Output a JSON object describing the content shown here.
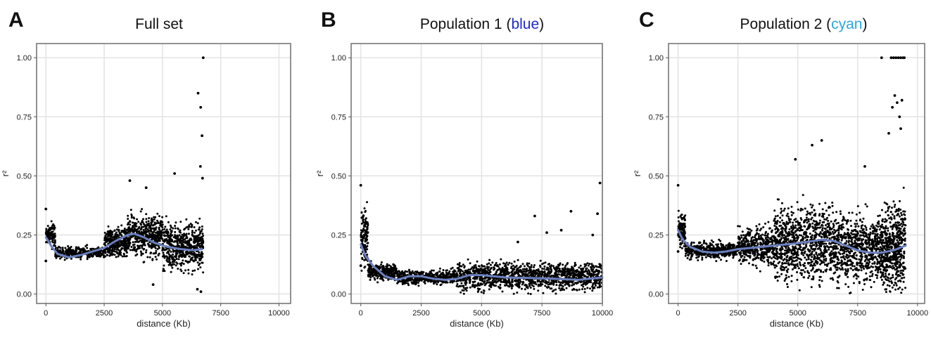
{
  "panels": [
    {
      "letter": "A",
      "title": "Full set",
      "title_parts": [
        {
          "text": "Full set",
          "color": "#111111"
        }
      ]
    },
    {
      "letter": "B",
      "title": "Population 1 (blue)",
      "title_parts": [
        {
          "text": "Population 1 (",
          "color": "#111111"
        },
        {
          "text": "blue",
          "color": "#1f2bcc"
        },
        {
          "text": ")",
          "color": "#111111"
        }
      ]
    },
    {
      "letter": "C",
      "title": "Population 2 (cyan)",
      "title_parts": [
        {
          "text": "Population 2 (",
          "color": "#111111"
        },
        {
          "text": "cyan",
          "color": "#29a9e0"
        },
        {
          "text": ")",
          "color": "#111111"
        }
      ]
    }
  ],
  "colors": {
    "points": "#000000",
    "smooth_line": "#6b7fbf",
    "grid": "#e3e3e3",
    "background": "#ffffff",
    "blue_word": "#1f2bcc",
    "cyan_word": "#29a9e0"
  },
  "chart_data": [
    {
      "type": "scatter",
      "title": "Full set",
      "xlabel": "distance (Kb)",
      "ylabel": "r²",
      "xlim": [
        -400,
        10500
      ],
      "ylim": [
        -0.04,
        1.06
      ],
      "x_ticks": [
        0,
        2500,
        5000,
        7500,
        10000
      ],
      "x_tick_labels": [
        "0",
        "2500",
        "5000",
        "7500",
        "10000"
      ],
      "y_ticks": [
        0,
        0.25,
        0.5,
        0.75,
        1.0
      ],
      "y_tick_labels": [
        "0.00",
        "0.25",
        "0.50",
        "0.75",
        "1.00"
      ],
      "grid": true,
      "legend": "none",
      "smooth_line": {
        "x": [
          0,
          250,
          500,
          1000,
          1500,
          2000,
          2500,
          3000,
          3500,
          3800,
          4200,
          4700,
          5200,
          5800,
          6300,
          6700
        ],
        "y": [
          0.24,
          0.2,
          0.17,
          0.155,
          0.165,
          0.18,
          0.195,
          0.225,
          0.25,
          0.255,
          0.24,
          0.215,
          0.2,
          0.19,
          0.185,
          0.19
        ]
      },
      "scatter_points": [
        {
          "x": 6750,
          "y": 1.0
        },
        {
          "x": 6530,
          "y": 0.85
        },
        {
          "x": 6640,
          "y": 0.79
        },
        {
          "x": 6700,
          "y": 0.67
        },
        {
          "x": 5520,
          "y": 0.51
        },
        {
          "x": 6720,
          "y": 0.49
        },
        {
          "x": 6630,
          "y": 0.54
        },
        {
          "x": 3600,
          "y": 0.48
        },
        {
          "x": 4300,
          "y": 0.45
        },
        {
          "x": 0,
          "y": 0.36
        },
        {
          "x": 4600,
          "y": 0.04
        },
        {
          "x": 0,
          "y": 0.14
        },
        {
          "x": 6650,
          "y": 0.01
        },
        {
          "x": 6500,
          "y": 0.02
        }
      ],
      "dense_clouds": [
        {
          "x_range": [
            0,
            400
          ],
          "y_center": 0.25,
          "y_spread": 0.05,
          "count": 110
        },
        {
          "x_range": [
            400,
            2500
          ],
          "y_center": 0.175,
          "y_spread": 0.025,
          "count": 320
        },
        {
          "x_range": [
            2500,
            3500
          ],
          "y_center": 0.215,
          "y_spread": 0.06,
          "count": 330
        },
        {
          "x_range": [
            3500,
            5000
          ],
          "y_center": 0.245,
          "y_spread": 0.085,
          "count": 480
        },
        {
          "x_range": [
            5000,
            6750
          ],
          "y_center": 0.2,
          "y_spread": 0.1,
          "count": 560
        }
      ]
    },
    {
      "type": "scatter",
      "title": "Population 1 (blue)",
      "xlabel": "distance (Kb)",
      "ylabel": "r²",
      "xlim": [
        -400,
        10000
      ],
      "ylim": [
        -0.04,
        1.06
      ],
      "x_ticks": [
        0,
        2500,
        5000,
        7500,
        10000
      ],
      "x_tick_labels": [
        "0",
        "2500",
        "5000",
        "7500",
        "10000"
      ],
      "y_ticks": [
        0,
        0.25,
        0.5,
        0.75,
        1.0
      ],
      "y_tick_labels": [
        "0.00",
        "0.25",
        "0.50",
        "0.75",
        "1.00"
      ],
      "grid": true,
      "legend": "none",
      "smooth_line": {
        "x": [
          0,
          200,
          500,
          1000,
          1500,
          2000,
          2500,
          3000,
          3500,
          4000,
          4500,
          5000,
          6000,
          7000,
          8000,
          9000,
          10000
        ],
        "y": [
          0.21,
          0.16,
          0.12,
          0.075,
          0.06,
          0.075,
          0.075,
          0.065,
          0.06,
          0.065,
          0.08,
          0.08,
          0.07,
          0.068,
          0.065,
          0.06,
          0.07
        ]
      },
      "scatter_points": [
        {
          "x": 0,
          "y": 0.46
        },
        {
          "x": 9900,
          "y": 0.47
        },
        {
          "x": 8700,
          "y": 0.35
        },
        {
          "x": 7200,
          "y": 0.33
        },
        {
          "x": 9800,
          "y": 0.34
        },
        {
          "x": 8300,
          "y": 0.27
        },
        {
          "x": 7700,
          "y": 0.26
        },
        {
          "x": 9600,
          "y": 0.25
        },
        {
          "x": 6500,
          "y": 0.22
        },
        {
          "x": 0,
          "y": 0.12
        }
      ],
      "dense_clouds": [
        {
          "x_range": [
            0,
            300
          ],
          "y_center": 0.24,
          "y_spread": 0.12,
          "count": 140
        },
        {
          "x_range": [
            300,
            1500
          ],
          "y_center": 0.095,
          "y_spread": 0.035,
          "count": 300
        },
        {
          "x_range": [
            1500,
            4000
          ],
          "y_center": 0.07,
          "y_spread": 0.03,
          "count": 500
        },
        {
          "x_range": [
            4000,
            10000
          ],
          "y_center": 0.075,
          "y_spread": 0.06,
          "count": 1300
        }
      ]
    },
    {
      "type": "scatter",
      "title": "Population 2 (cyan)",
      "xlabel": "distance (Kb)",
      "ylabel": "r²",
      "xlim": [
        -400,
        10300
      ],
      "ylim": [
        -0.04,
        1.06
      ],
      "x_ticks": [
        0,
        2500,
        5000,
        7500,
        10000
      ],
      "x_tick_labels": [
        "0",
        "2500",
        "5000",
        "7500",
        "10000"
      ],
      "y_ticks": [
        0,
        0.25,
        0.5,
        0.75,
        1.0
      ],
      "y_tick_labels": [
        "0.00",
        "0.25",
        "0.50",
        "0.75",
        "1.00"
      ],
      "grid": true,
      "legend": "none",
      "smooth_line": {
        "x": [
          0,
          200,
          500,
          1000,
          1500,
          2000,
          2500,
          3000,
          4000,
          5000,
          6000,
          6500,
          7000,
          7500,
          8000,
          8500,
          9000,
          9500
        ],
        "y": [
          0.27,
          0.23,
          0.2,
          0.18,
          0.175,
          0.18,
          0.19,
          0.195,
          0.205,
          0.215,
          0.23,
          0.225,
          0.205,
          0.185,
          0.175,
          0.175,
          0.185,
          0.205
        ]
      },
      "scatter_points": [
        {
          "x": 8500,
          "y": 1.0
        },
        {
          "x": 8900,
          "y": 1.0
        },
        {
          "x": 9000,
          "y": 1.0
        },
        {
          "x": 9100,
          "y": 1.0
        },
        {
          "x": 9200,
          "y": 1.0
        },
        {
          "x": 9300,
          "y": 1.0
        },
        {
          "x": 9400,
          "y": 1.0
        },
        {
          "x": 9450,
          "y": 1.0
        },
        {
          "x": 9050,
          "y": 0.84
        },
        {
          "x": 9150,
          "y": 0.81
        },
        {
          "x": 9350,
          "y": 0.82
        },
        {
          "x": 8950,
          "y": 0.79
        },
        {
          "x": 9250,
          "y": 0.75
        },
        {
          "x": 8800,
          "y": 0.68
        },
        {
          "x": 9300,
          "y": 0.7
        },
        {
          "x": 6000,
          "y": 0.65
        },
        {
          "x": 5600,
          "y": 0.63
        },
        {
          "x": 4900,
          "y": 0.57
        },
        {
          "x": 7800,
          "y": 0.54
        },
        {
          "x": 0,
          "y": 0.46
        },
        {
          "x": 0,
          "y": 0.18
        }
      ],
      "dense_clouds": [
        {
          "x_range": [
            0,
            300
          ],
          "y_center": 0.27,
          "y_spread": 0.07,
          "count": 130
        },
        {
          "x_range": [
            300,
            2500
          ],
          "y_center": 0.185,
          "y_spread": 0.035,
          "count": 450
        },
        {
          "x_range": [
            2500,
            4000
          ],
          "y_center": 0.2,
          "y_spread": 0.08,
          "count": 420
        },
        {
          "x_range": [
            4000,
            6500
          ],
          "y_center": 0.22,
          "y_spread": 0.16,
          "count": 900
        },
        {
          "x_range": [
            6500,
            8500
          ],
          "y_center": 0.19,
          "y_spread": 0.15,
          "count": 700
        },
        {
          "x_range": [
            8500,
            9500
          ],
          "y_center": 0.2,
          "y_spread": 0.19,
          "count": 550
        }
      ]
    }
  ]
}
